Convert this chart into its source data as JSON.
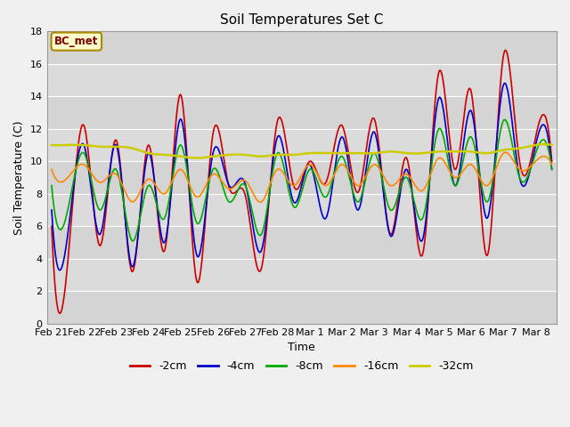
{
  "title": "Soil Temperatures Set C",
  "xlabel": "Time",
  "ylabel": "Soil Temperature (C)",
  "ylim": [
    0,
    18
  ],
  "annotation_text": "BC_met",
  "annotation_bg": "#ffffcc",
  "annotation_border": "#aa8800",
  "annotation_text_color": "#800000",
  "series_order": [
    "-2cm",
    "-4cm",
    "-8cm",
    "-16cm",
    "-32cm"
  ],
  "series": {
    "-2cm": {
      "color": "#cc0000",
      "lw": 1.2
    },
    "-4cm": {
      "color": "#0000cc",
      "lw": 1.2
    },
    "-8cm": {
      "color": "#00aa00",
      "lw": 1.2
    },
    "-16cm": {
      "color": "#ff8800",
      "lw": 1.2
    },
    "-32cm": {
      "color": "#cccc00",
      "lw": 1.8
    }
  },
  "xtick_labels": [
    "Feb 21",
    "Feb 22",
    "Feb 23",
    "Feb 24",
    "Feb 25",
    "Feb 26",
    "Feb 27",
    "Feb 28",
    "Mar 1",
    "Mar 2",
    "Mar 3",
    "Mar 4",
    "Mar 5",
    "Mar 6",
    "Mar 7",
    "Mar 8"
  ],
  "data": {
    "x_indices": [
      0,
      1,
      2,
      3,
      4,
      5,
      6,
      7,
      8,
      9,
      10,
      11,
      12,
      13,
      14,
      15,
      16,
      17,
      18,
      19,
      20,
      21,
      22,
      23,
      24,
      25,
      26,
      27,
      28,
      29,
      30,
      31
    ],
    "-2cm": [
      6.0,
      3.8,
      12.2,
      4.8,
      11.3,
      3.2,
      11.0,
      4.5,
      14.1,
      2.6,
      11.7,
      8.4,
      7.9,
      3.4,
      12.5,
      8.5,
      10.0,
      8.7,
      12.2,
      8.1,
      12.6,
      5.5,
      10.2,
      4.3,
      15.5,
      9.5,
      14.3,
      4.2,
      16.5,
      10.0,
      11.5,
      10.0
    ],
    "-4cm": [
      7.0,
      5.5,
      11.0,
      5.5,
      11.0,
      3.5,
      10.5,
      5.0,
      12.6,
      4.2,
      10.5,
      8.5,
      8.6,
      4.5,
      11.5,
      7.5,
      9.8,
      6.5,
      11.5,
      7.0,
      11.8,
      5.4,
      9.5,
      5.2,
      13.9,
      8.5,
      13.1,
      6.5,
      14.7,
      9.0,
      11.0,
      9.5
    ],
    "-8cm": [
      8.5,
      7.0,
      10.5,
      7.0,
      9.5,
      5.1,
      8.5,
      6.5,
      11.0,
      6.2,
      9.5,
      7.5,
      8.5,
      5.5,
      10.5,
      7.2,
      9.5,
      7.8,
      10.3,
      7.5,
      10.5,
      7.0,
      9.0,
      6.5,
      12.0,
      8.5,
      11.5,
      7.5,
      12.5,
      9.0,
      10.5,
      9.5
    ],
    "-16cm": [
      9.5,
      9.0,
      9.8,
      8.7,
      9.2,
      7.5,
      8.9,
      8.0,
      9.5,
      7.8,
      9.2,
      8.3,
      8.8,
      7.5,
      9.5,
      8.5,
      9.8,
      8.5,
      9.8,
      8.5,
      9.8,
      8.5,
      9.2,
      8.2,
      10.2,
      9.0,
      9.8,
      8.5,
      10.5,
      9.5,
      10.0,
      9.8
    ],
    "-32cm": [
      11.0,
      11.0,
      11.0,
      10.9,
      10.9,
      10.8,
      10.5,
      10.4,
      10.3,
      10.2,
      10.3,
      10.4,
      10.4,
      10.3,
      10.4,
      10.4,
      10.5,
      10.5,
      10.5,
      10.5,
      10.5,
      10.6,
      10.5,
      10.5,
      10.6,
      10.6,
      10.6,
      10.5,
      10.7,
      10.8,
      11.0,
      11.0
    ]
  },
  "tick_positions": [
    0,
    2,
    4,
    6,
    8,
    10,
    12,
    14,
    16,
    18,
    20,
    22,
    24,
    26,
    28,
    30
  ]
}
